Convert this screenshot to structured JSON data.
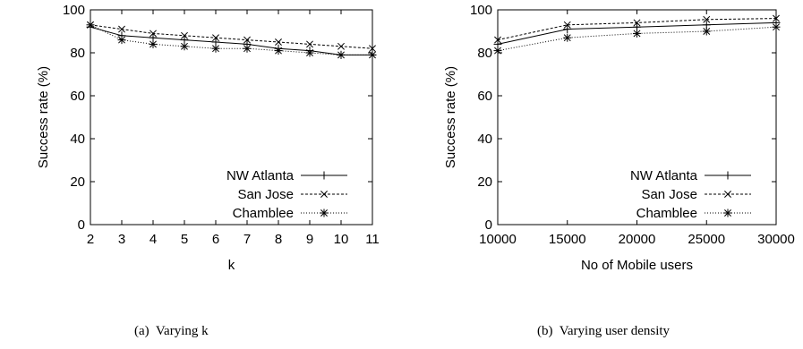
{
  "chart_data": [
    {
      "type": "line",
      "xlabel": "k",
      "ylabel": "Success rate (%)",
      "x": [
        2,
        3,
        4,
        5,
        6,
        7,
        8,
        9,
        10,
        11
      ],
      "xlim": [
        2,
        11
      ],
      "ylim": [
        0,
        100
      ],
      "xticks": [
        "2",
        "3",
        "4",
        "5",
        "6",
        "7",
        "8",
        "9",
        "10",
        "11"
      ],
      "yticks": [
        "0",
        "20",
        "40",
        "60",
        "80",
        "100"
      ],
      "legend_position": "bottom-right",
      "grid": false,
      "series": [
        {
          "name": "NW Atlanta",
          "marker": "plus",
          "dash": "solid",
          "values": [
            92,
            88,
            87,
            86,
            85,
            84,
            82,
            81,
            79,
            79
          ]
        },
        {
          "name": "San Jose",
          "marker": "x",
          "dash": "dashed",
          "values": [
            93,
            91,
            89,
            88,
            87,
            86,
            85,
            84,
            83,
            82
          ]
        },
        {
          "name": "Chamblee",
          "marker": "star",
          "dash": "dotted",
          "values": [
            93,
            86,
            84,
            83,
            82,
            82,
            81,
            80,
            79,
            79
          ]
        }
      ],
      "caption": "(a)  Varying k"
    },
    {
      "type": "line",
      "xlabel": "No of Mobile users",
      "ylabel": "Success rate (%)",
      "x": [
        10000,
        15000,
        20000,
        25000,
        30000
      ],
      "xlim": [
        10000,
        30000
      ],
      "ylim": [
        0,
        100
      ],
      "xticks": [
        "10000",
        "15000",
        "20000",
        "25000",
        "30000"
      ],
      "yticks": [
        "0",
        "20",
        "40",
        "60",
        "80",
        "100"
      ],
      "legend_position": "bottom-right",
      "grid": false,
      "series": [
        {
          "name": "NW Atlanta",
          "marker": "plus",
          "dash": "solid",
          "values": [
            84,
            91,
            92,
            93,
            94
          ]
        },
        {
          "name": "San Jose",
          "marker": "x",
          "dash": "dashed",
          "values": [
            86,
            93,
            94,
            95.5,
            96
          ]
        },
        {
          "name": "Chamblee",
          "marker": "star",
          "dash": "dotted",
          "values": [
            81,
            87,
            89,
            90,
            92
          ]
        }
      ],
      "caption": "(b)  Varying user density"
    }
  ]
}
